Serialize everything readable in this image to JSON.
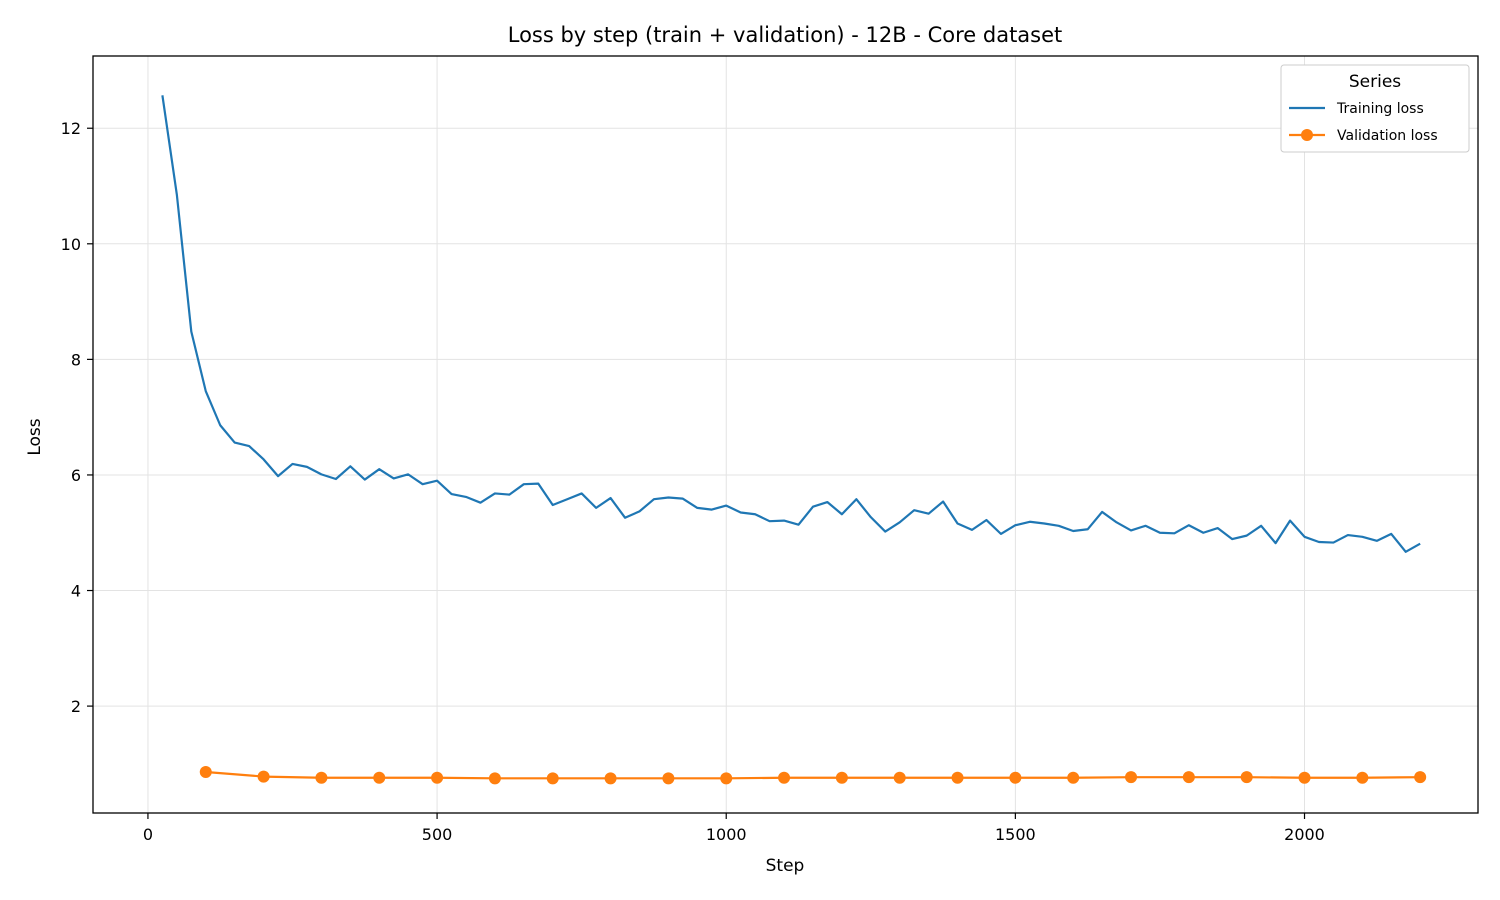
{
  "chart_data": {
    "type": "line",
    "title": "Loss by step (train + validation) - 12B - Core dataset",
    "xlabel": "Step",
    "ylabel": "Loss",
    "xlim": [
      -95,
      2300
    ],
    "ylim": [
      0.15,
      13.25
    ],
    "xticks": [
      0,
      500,
      1000,
      1500,
      2000
    ],
    "yticks": [
      2,
      4,
      6,
      8,
      10,
      12
    ],
    "grid": true,
    "legend": {
      "title": "Series",
      "placement": "top-right"
    },
    "colors": {
      "training": "#1f77b4",
      "validation": "#ff7f0e"
    },
    "series": [
      {
        "name": "Training loss",
        "color": "#1f77b4",
        "marker": "none",
        "x": [
          25,
          50,
          75,
          100,
          125,
          150,
          175,
          200,
          225,
          250,
          275,
          300,
          325,
          350,
          375,
          400,
          425,
          450,
          475,
          500,
          525,
          550,
          575,
          600,
          625,
          650,
          675,
          700,
          725,
          750,
          775,
          800,
          825,
          850,
          875,
          900,
          925,
          950,
          975,
          1000,
          1025,
          1050,
          1075,
          1100,
          1125,
          1150,
          1175,
          1200,
          1225,
          1250,
          1275,
          1300,
          1325,
          1350,
          1375,
          1400,
          1425,
          1450,
          1475,
          1500,
          1525,
          1550,
          1575,
          1600,
          1625,
          1650,
          1675,
          1700,
          1725,
          1750,
          1775,
          1800,
          1825,
          1850,
          1875,
          1900,
          1925,
          1950,
          1975,
          2000,
          2025,
          2050,
          2075,
          2100,
          2125,
          2150,
          2175,
          2200
        ],
        "y": [
          12.57,
          10.85,
          8.48,
          7.45,
          6.86,
          6.56,
          6.5,
          6.27,
          5.98,
          6.19,
          6.14,
          6.01,
          5.93,
          6.15,
          5.92,
          6.1,
          5.94,
          6.01,
          5.84,
          5.9,
          5.67,
          5.62,
          5.52,
          5.68,
          5.66,
          5.84,
          5.85,
          5.48,
          5.58,
          5.68,
          5.43,
          5.6,
          5.26,
          5.37,
          5.58,
          5.61,
          5.59,
          5.43,
          5.4,
          5.47,
          5.35,
          5.32,
          5.2,
          5.21,
          5.14,
          5.45,
          5.53,
          5.32,
          5.58,
          5.27,
          5.02,
          5.18,
          5.39,
          5.33,
          5.54,
          5.16,
          5.05,
          5.22,
          4.98,
          5.13,
          5.19,
          5.16,
          5.12,
          5.03,
          5.06,
          5.36,
          5.18,
          5.04,
          5.12,
          5.0,
          4.99,
          5.13,
          5.0,
          5.08,
          4.89,
          4.95,
          5.12,
          4.82,
          5.21,
          4.93,
          4.84,
          4.83,
          4.96,
          4.93,
          4.86,
          4.98,
          4.67,
          4.81
        ]
      },
      {
        "name": "Validation loss",
        "color": "#ff7f0e",
        "marker": "circle",
        "x": [
          100,
          200,
          300,
          400,
          500,
          600,
          700,
          800,
          900,
          1000,
          1100,
          1200,
          1300,
          1400,
          1500,
          1600,
          1700,
          1800,
          1900,
          2000,
          2100,
          2200
        ],
        "y": [
          0.86,
          0.78,
          0.76,
          0.76,
          0.76,
          0.75,
          0.75,
          0.75,
          0.75,
          0.75,
          0.76,
          0.76,
          0.76,
          0.76,
          0.76,
          0.76,
          0.77,
          0.77,
          0.77,
          0.76,
          0.76,
          0.77
        ]
      }
    ]
  }
}
